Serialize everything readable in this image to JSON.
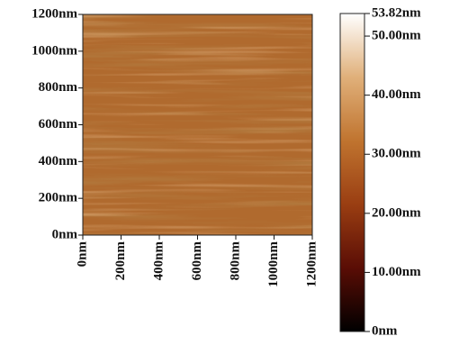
{
  "chart_data": {
    "type": "afm-image",
    "xlim": [
      0,
      1200
    ],
    "xticks": [
      {
        "value": 0,
        "label": "0nm"
      },
      {
        "value": 200,
        "label": "200nm"
      },
      {
        "value": 400,
        "label": "400nm"
      },
      {
        "value": 600,
        "label": "600nm"
      },
      {
        "value": 800,
        "label": "800nm"
      },
      {
        "value": 1000,
        "label": "1000nm"
      },
      {
        "value": 1200,
        "label": "1200nm"
      }
    ],
    "ylim": [
      0,
      1200
    ],
    "yticks": [
      {
        "value": 0,
        "label": "0nm"
      },
      {
        "value": 200,
        "label": "200nm"
      },
      {
        "value": 400,
        "label": "400nm"
      },
      {
        "value": 600,
        "label": "600nm"
      },
      {
        "value": 800,
        "label": "800nm"
      },
      {
        "value": 1000,
        "label": "1000nm"
      },
      {
        "value": 1200,
        "label": "1200nm"
      }
    ],
    "clim": [
      0,
      53.82
    ],
    "cticks": [
      {
        "value": 0,
        "label": "0nm"
      },
      {
        "value": 10,
        "label": "10.00nm"
      },
      {
        "value": 20,
        "label": "20.00nm"
      },
      {
        "value": 30,
        "label": "30.00nm"
      },
      {
        "value": 40,
        "label": "40.00nm"
      },
      {
        "value": 50,
        "label": "50.00nm"
      },
      {
        "value": 53.82,
        "label": "53.82nm"
      }
    ],
    "colormap": [
      "#000000",
      "#5a0d05",
      "#9a3e12",
      "#c0742f",
      "#e0b07a",
      "#ffffff"
    ],
    "image_color": "#b06a2e"
  }
}
